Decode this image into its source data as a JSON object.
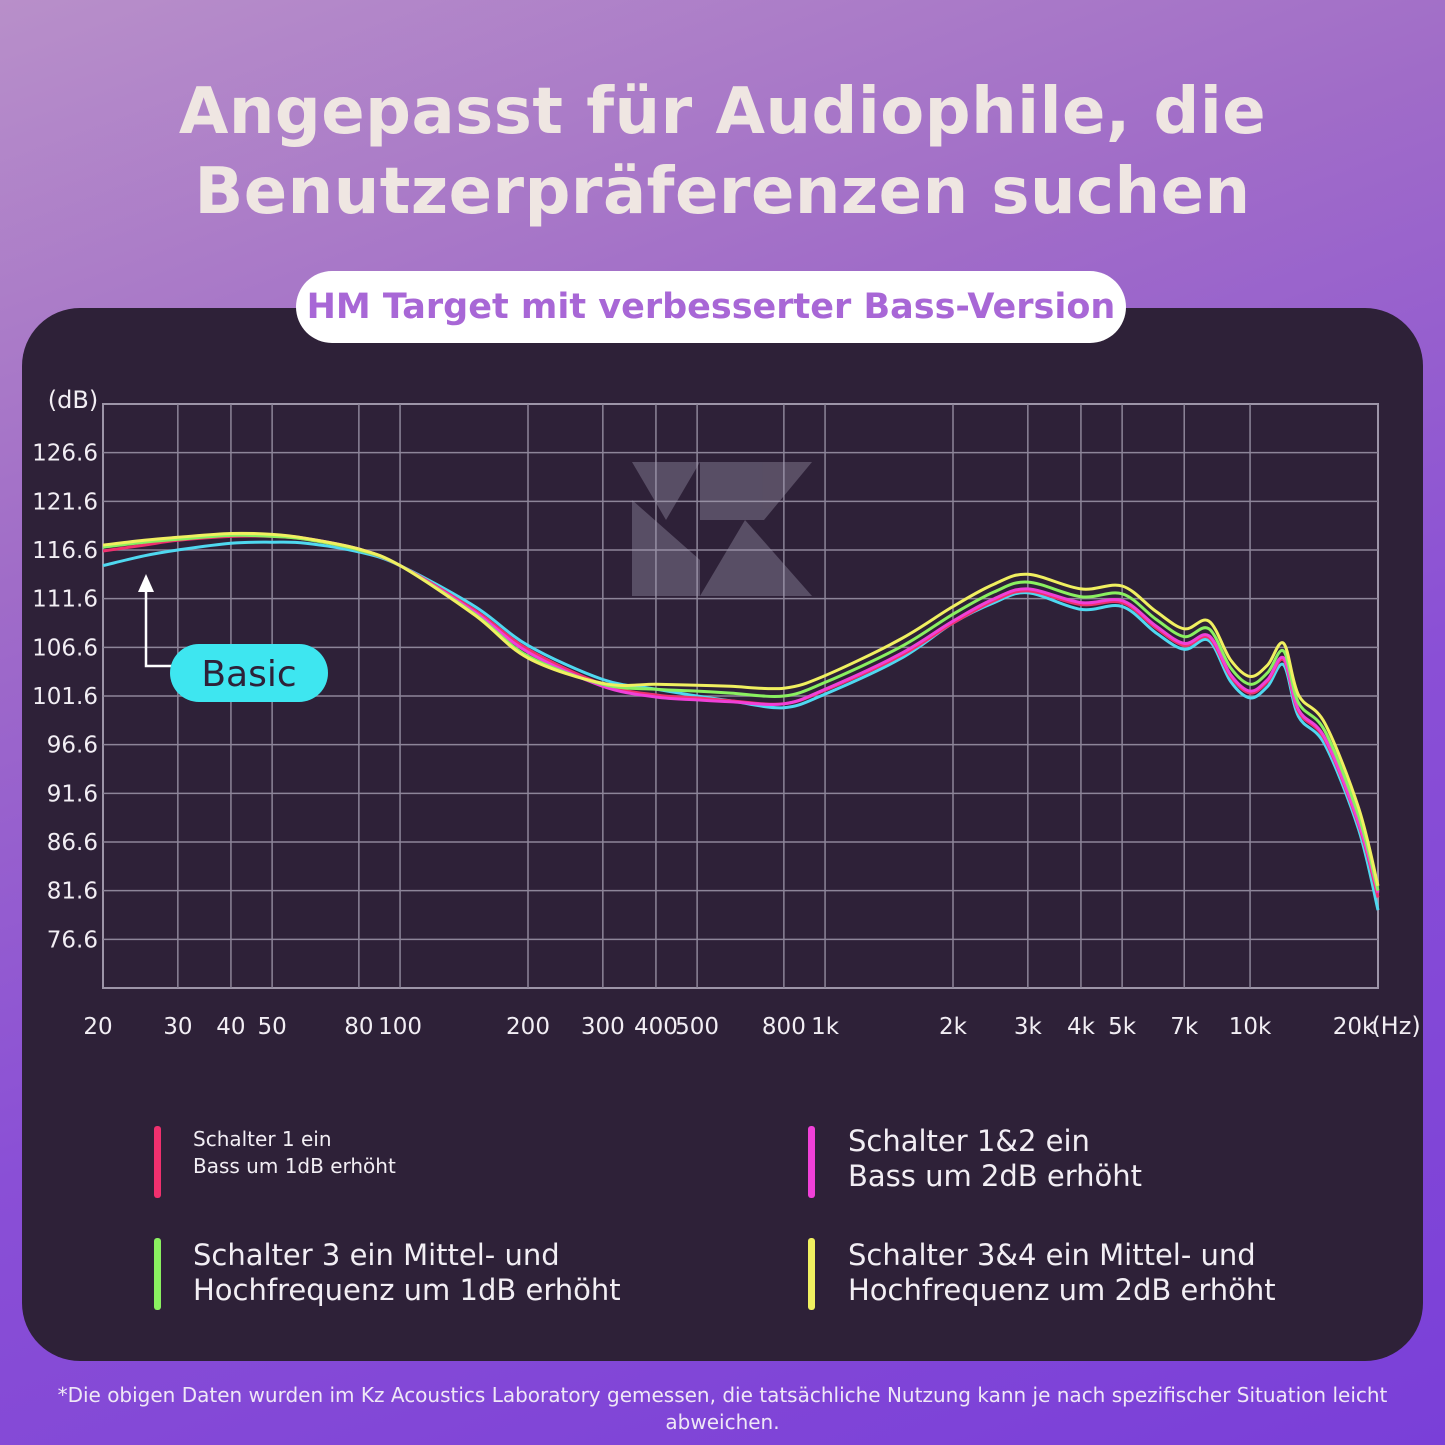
{
  "header": {
    "title_line1": "Angepasst für Audiophile, die",
    "title_line2": "Benutzerpräferenzen suchen",
    "subtitle": "HM Target mit verbesserter Bass-Version"
  },
  "chart_data": {
    "type": "line",
    "ylabel": "(dB)",
    "xlabel": "(Hz)",
    "x_scale": "log",
    "grid": true,
    "ylim": [
      71.6,
      131.6
    ],
    "y_ticks": [
      "126.6",
      "121.6",
      "116.6",
      "111.6",
      "106.6",
      "101.6",
      "96.6",
      "91.6",
      "86.6",
      "81.6",
      "76.6"
    ],
    "x_ticks": [
      "20",
      "30",
      "40",
      "50",
      "80",
      "100",
      "200",
      "300",
      "400",
      "500",
      "800",
      "1k",
      "2k",
      "3k",
      "4k",
      "5k",
      "7k",
      "10k",
      "20k"
    ],
    "x": [
      20,
      25,
      30,
      40,
      50,
      60,
      80,
      100,
      150,
      200,
      300,
      400,
      500,
      600,
      800,
      1000,
      1500,
      2000,
      2500,
      3000,
      4000,
      5000,
      6000,
      7000,
      8000,
      9000,
      10000,
      11000,
      12000,
      13000,
      15000,
      18000,
      20000
    ],
    "series": [
      {
        "color": "#4fd8f0",
        "values": [
          115.0,
          116.0,
          116.6,
          117.3,
          117.4,
          117.3,
          116.4,
          115.0,
          110.8,
          106.8,
          103.3,
          102.3,
          101.6,
          101.1,
          100.4,
          101.8,
          105.4,
          109.1,
          111.2,
          112.2,
          110.5,
          110.8,
          108.1,
          106.4,
          107.3,
          103.1,
          101.4,
          102.6,
          104.8,
          99.5,
          96.6,
          87.9,
          79.6
        ]
      },
      {
        "color": "#f0306e",
        "values": [
          116.5,
          117.1,
          117.6,
          118.0,
          118.0,
          117.7,
          116.6,
          115.0,
          110.4,
          106.4,
          102.8,
          101.7,
          101.4,
          101.1,
          100.8,
          102.2,
          105.7,
          109.1,
          111.4,
          112.4,
          111.0,
          111.2,
          108.6,
          106.8,
          107.6,
          103.6,
          101.9,
          103.1,
          105.3,
          100.0,
          97.1,
          88.4,
          80.9
        ]
      },
      {
        "color": "#f040d8",
        "values": [
          117.0,
          117.5,
          117.8,
          118.2,
          118.1,
          117.8,
          116.7,
          115.0,
          110.2,
          106.1,
          102.6,
          101.5,
          101.2,
          101.0,
          100.8,
          102.3,
          105.9,
          109.3,
          111.6,
          112.6,
          111.2,
          111.4,
          108.8,
          107.0,
          107.8,
          103.8,
          102.1,
          103.3,
          105.5,
          100.2,
          97.3,
          88.6,
          81.4
        ]
      },
      {
        "color": "#8af060",
        "values": [
          116.9,
          117.4,
          117.7,
          118.1,
          118.0,
          117.7,
          116.6,
          115.0,
          110.0,
          105.7,
          102.8,
          102.3,
          102.1,
          101.9,
          101.6,
          103.0,
          106.6,
          110.0,
          112.3,
          113.3,
          111.8,
          112.1,
          109.5,
          107.7,
          108.5,
          104.5,
          102.8,
          104.0,
          106.2,
          100.9,
          98.0,
          89.3,
          81.6
        ]
      },
      {
        "color": "#f0f060",
        "values": [
          117.1,
          117.6,
          117.9,
          118.3,
          118.2,
          117.8,
          116.7,
          115.0,
          109.9,
          105.5,
          102.9,
          102.8,
          102.7,
          102.6,
          102.4,
          103.7,
          107.4,
          110.8,
          113.1,
          114.1,
          112.6,
          112.9,
          110.3,
          108.5,
          109.3,
          105.3,
          103.6,
          104.8,
          107.0,
          101.7,
          98.8,
          90.1,
          82.1
        ]
      }
    ],
    "annotation": {
      "label": "Basic",
      "color": "#3ee6f0"
    }
  },
  "legend": [
    {
      "line1": "Schalter 1 ein",
      "line2": "Bass um 1dB erhöht",
      "color": "#f0306e"
    },
    {
      "line1": "Schalter 1&2 ein",
      "line2": "Bass um 2dB erhöht",
      "color": "#f040d8"
    },
    {
      "line1": "Schalter 3 ein Mittel- und",
      "line2": "Hochfrequenz um 1dB erhöht",
      "color": "#8af060"
    },
    {
      "line1": "Schalter 3&4 ein Mittel- und",
      "line2": "Hochfrequenz um 2dB erhöht",
      "color": "#f0f060"
    }
  ],
  "footnote": "*Die obigen Daten wurden im Kz Acoustics Laboratory gemessen, die tatsächliche Nutzung kann je nach spezifischer Situation leicht abweichen."
}
